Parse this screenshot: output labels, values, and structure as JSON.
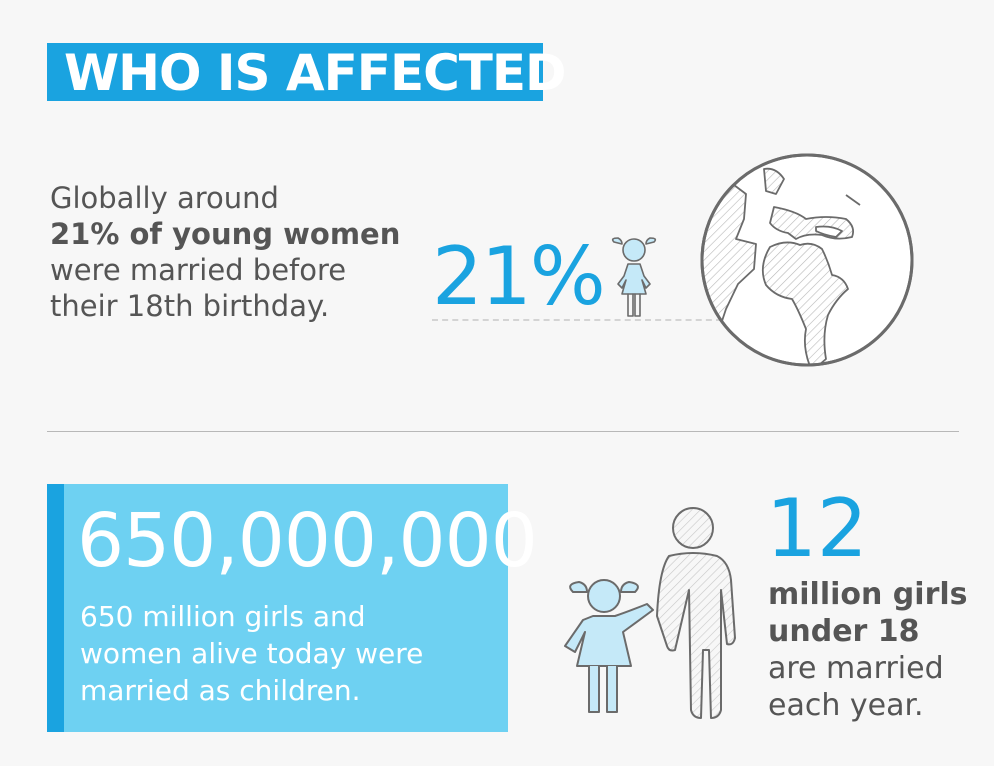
{
  "header": {
    "title": "WHO IS AFFECTED"
  },
  "stat1": {
    "line1": "Globally around",
    "line2": "21% of young women",
    "line3": "were married before",
    "line4": "their 18th birthday.",
    "percent": "21%"
  },
  "stat2": {
    "number": "650,000,000",
    "line1": "650 million girls and",
    "line2": "women alive today were",
    "line3": "married as children."
  },
  "stat3": {
    "number": "12",
    "line1": "million girls",
    "line2": "under 18",
    "line3": "are married",
    "line4": "each year."
  },
  "colors": {
    "accent": "#1aa3e0",
    "box": "#6ed1f2",
    "text": "#555555",
    "girl_fill": "#c5e9f8"
  },
  "icons": [
    "girl-icon",
    "globe-icon",
    "child-icon",
    "adult-icon"
  ]
}
